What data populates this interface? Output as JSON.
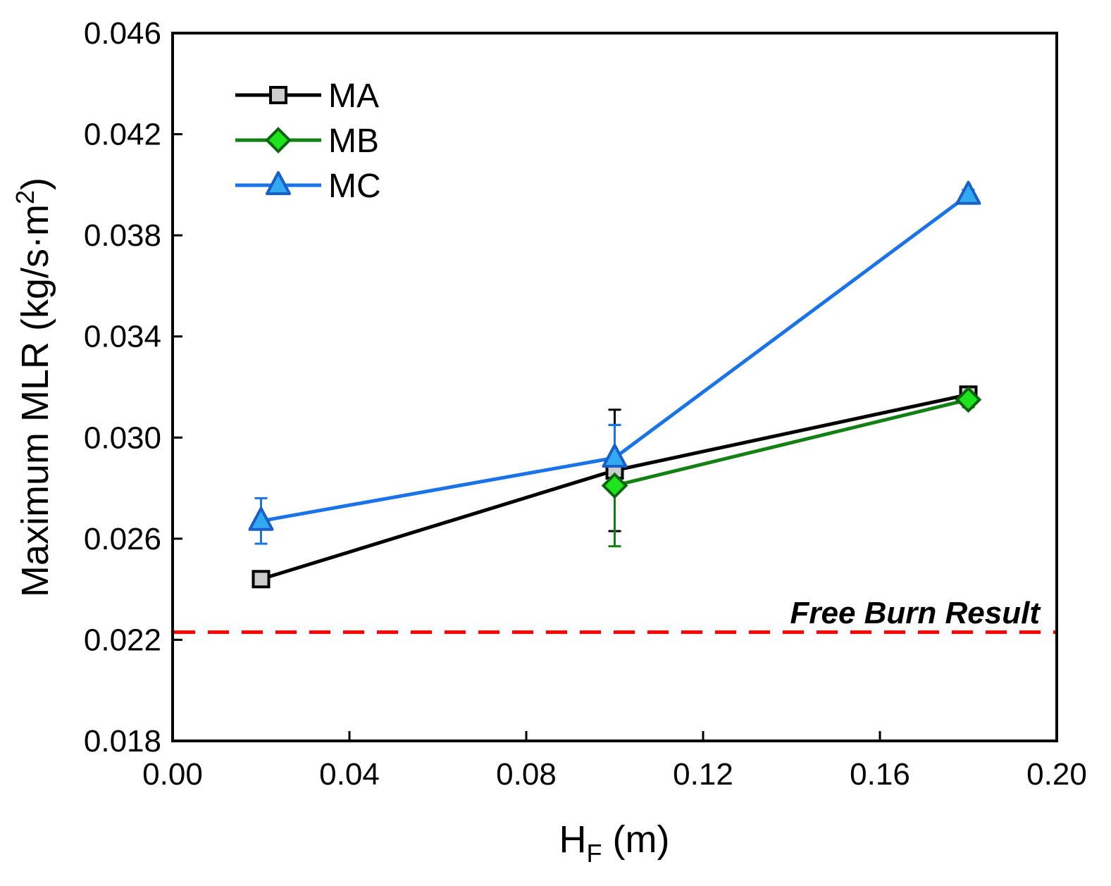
{
  "chart_data": {
    "type": "line",
    "title": "",
    "xlabel": {
      "main": "H",
      "sub": "F",
      "unit": " (m)"
    },
    "ylabel": {
      "main": "Maximum MLR (kg/s·m",
      "sup": "2",
      "close": ")"
    },
    "xlim": [
      0.0,
      0.2
    ],
    "ylim": [
      0.018,
      0.046
    ],
    "xticks": [
      "0.00",
      "0.04",
      "0.08",
      "0.12",
      "0.16",
      "0.20"
    ],
    "yticks": [
      "0.018",
      "0.022",
      "0.026",
      "0.030",
      "0.034",
      "0.038",
      "0.042",
      "0.046"
    ],
    "grid": false,
    "legend_position": "top-left",
    "series": [
      {
        "name": "MA",
        "marker": "square",
        "line_color": "#000000",
        "marker_fill": "#cccccc",
        "marker_stroke": "#000000",
        "x": [
          0.02,
          0.1,
          0.18
        ],
        "y": [
          0.0244,
          0.0287,
          0.0317
        ],
        "err": [
          0.0,
          0.0024,
          0.0002
        ]
      },
      {
        "name": "MB",
        "marker": "diamond",
        "line_color": "#138013",
        "marker_fill": "#1ee41e",
        "marker_stroke": "#0a660a",
        "x": [
          0.1,
          0.18
        ],
        "y": [
          0.0281,
          0.0315
        ],
        "err": [
          0.0024,
          0.0003
        ]
      },
      {
        "name": "MC",
        "marker": "triangle",
        "line_color": "#1a73e8",
        "marker_fill": "#31aaf0",
        "marker_stroke": "#1a5fc8",
        "x": [
          0.02,
          0.1,
          0.18
        ],
        "y": [
          0.0267,
          0.0292,
          0.0396
        ],
        "err": [
          0.0009,
          0.0013,
          0.0002
        ]
      }
    ],
    "reference_line": {
      "label": "Free Burn Result",
      "y": 0.0223,
      "color": "#ff0000",
      "style": "dashed"
    }
  }
}
